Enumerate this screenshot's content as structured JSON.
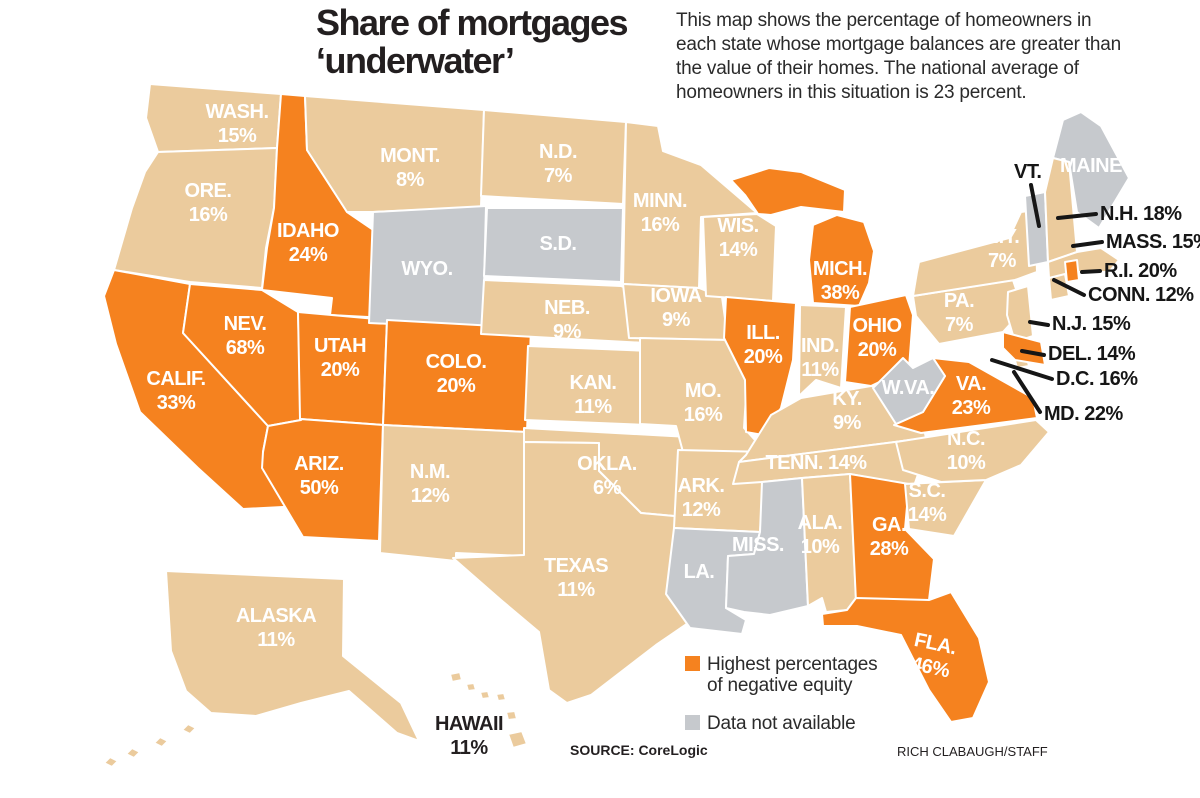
{
  "title": {
    "line1": "Share of mortgages",
    "line2": "‘underwater’"
  },
  "description": {
    "lines": [
      "This map shows the percentage of homeowners in",
      "each state whose mortgage balances are greater than",
      "the value of their homes. The national average of",
      "homeowners in this situation is 23 percent."
    ]
  },
  "colors": {
    "highlight": "#F5821F",
    "normal": "#EBCB9D",
    "nodata": "#C6C9CD",
    "border": "#FFFFFF",
    "state_label": "#FFFFFF",
    "dark_text": "#231F20"
  },
  "legend": {
    "items": [
      {
        "swatch": "highlight",
        "line1": "Highest percentages",
        "line2": "of negative equity"
      },
      {
        "swatch": "nodata",
        "line1": "Data not available",
        "line2": ""
      }
    ]
  },
  "source": "SOURCE: CoreLogic",
  "credit": "RICH CLABAUGH/STAFF",
  "chart_data": {
    "type": "choropleth-map",
    "region": "United States",
    "metric": "Percentage of homeowners whose mortgage balance exceeds home value",
    "national_average_pct": 23,
    "categories_legend": {
      "highlight": "Highest percentages of negative equity",
      "nodata": "Data not available"
    },
    "states": [
      {
        "id": "WA",
        "label": "WASH.",
        "value": "15%",
        "category": "normal"
      },
      {
        "id": "OR",
        "label": "ORE.",
        "value": "16%",
        "category": "normal"
      },
      {
        "id": "CA",
        "label": "CALIF.",
        "value": "33%",
        "category": "highlight"
      },
      {
        "id": "ID",
        "label": "IDAHO",
        "value": "24%",
        "category": "highlight"
      },
      {
        "id": "NV",
        "label": "NEV.",
        "value": "68%",
        "category": "highlight"
      },
      {
        "id": "UT",
        "label": "UTAH",
        "value": "20%",
        "category": "highlight"
      },
      {
        "id": "AZ",
        "label": "ARIZ.",
        "value": "50%",
        "category": "highlight"
      },
      {
        "id": "MT",
        "label": "MONT.",
        "value": "8%",
        "category": "normal"
      },
      {
        "id": "WY",
        "label": "WYO.",
        "value": null,
        "category": "nodata"
      },
      {
        "id": "CO",
        "label": "COLO.",
        "value": "20%",
        "category": "highlight"
      },
      {
        "id": "NM",
        "label": "N.M.",
        "value": "12%",
        "category": "normal"
      },
      {
        "id": "ND",
        "label": "N.D.",
        "value": "7%",
        "category": "normal"
      },
      {
        "id": "SD",
        "label": "S.D.",
        "value": null,
        "category": "nodata"
      },
      {
        "id": "NE",
        "label": "NEB.",
        "value": "9%",
        "category": "normal"
      },
      {
        "id": "KS",
        "label": "KAN.",
        "value": "11%",
        "category": "normal"
      },
      {
        "id": "OK",
        "label": "OKLA.",
        "value": "6%",
        "category": "normal"
      },
      {
        "id": "TX",
        "label": "TEXAS",
        "value": "11%",
        "category": "normal"
      },
      {
        "id": "MN",
        "label": "MINN.",
        "value": "16%",
        "category": "normal"
      },
      {
        "id": "IA",
        "label": "IOWA",
        "value": "9%",
        "category": "normal"
      },
      {
        "id": "MO",
        "label": "MO.",
        "value": "16%",
        "category": "normal"
      },
      {
        "id": "AR",
        "label": "ARK.",
        "value": "12%",
        "category": "normal"
      },
      {
        "id": "LA",
        "label": "LA.",
        "value": null,
        "category": "nodata"
      },
      {
        "id": "WI",
        "label": "WIS.",
        "value": "14%",
        "category": "normal"
      },
      {
        "id": "IL",
        "label": "ILL.",
        "value": "20%",
        "category": "highlight"
      },
      {
        "id": "MI",
        "label": "MICH.",
        "value": "38%",
        "category": "highlight"
      },
      {
        "id": "IN",
        "label": "IND.",
        "value": "11%",
        "category": "normal"
      },
      {
        "id": "OH",
        "label": "OHIO",
        "value": "20%",
        "category": "highlight"
      },
      {
        "id": "KY",
        "label": "KY.",
        "value": "9%",
        "category": "normal"
      },
      {
        "id": "TN",
        "label": "TENN.",
        "value": "14%",
        "category": "normal",
        "single_line": true
      },
      {
        "id": "MS",
        "label": "MISS.",
        "value": null,
        "category": "nodata"
      },
      {
        "id": "AL",
        "label": "ALA.",
        "value": "10%",
        "category": "normal"
      },
      {
        "id": "GA",
        "label": "GA.",
        "value": "28%",
        "category": "highlight"
      },
      {
        "id": "FL",
        "label": "FLA.",
        "value": "46%",
        "category": "highlight"
      },
      {
        "id": "SC",
        "label": "S.C.",
        "value": "14%",
        "category": "normal"
      },
      {
        "id": "NC",
        "label": "N.C.",
        "value": "10%",
        "category": "normal"
      },
      {
        "id": "VA",
        "label": "VA.",
        "value": "23%",
        "category": "highlight"
      },
      {
        "id": "WV",
        "label": "W.VA.",
        "value": null,
        "category": "nodata"
      },
      {
        "id": "PA",
        "label": "PA.",
        "value": "7%",
        "category": "normal"
      },
      {
        "id": "NY",
        "label": "N.Y.",
        "value": "7%",
        "category": "normal"
      },
      {
        "id": "VT",
        "label": "VT.",
        "value": null,
        "category": "nodata",
        "callout": true
      },
      {
        "id": "ME",
        "label": "MAINE",
        "value": null,
        "category": "nodata"
      },
      {
        "id": "NH",
        "label": "N.H.",
        "value": "18%",
        "category": "normal",
        "callout": true
      },
      {
        "id": "MA",
        "label": "MASS.",
        "value": "15%",
        "category": "normal",
        "callout": true
      },
      {
        "id": "RI",
        "label": "R.I.",
        "value": "20%",
        "category": "highlight",
        "callout": true
      },
      {
        "id": "CT",
        "label": "CONN.",
        "value": "12%",
        "category": "normal",
        "callout": true
      },
      {
        "id": "NJ",
        "label": "N.J.",
        "value": "15%",
        "category": "normal",
        "callout": true
      },
      {
        "id": "DE",
        "label": "DEL.",
        "value": "14%",
        "category": "normal",
        "callout": true
      },
      {
        "id": "DC",
        "label": "D.C.",
        "value": "16%",
        "category": "normal",
        "callout": true
      },
      {
        "id": "MD",
        "label": "MD.",
        "value": "22%",
        "category": "highlight",
        "callout": true
      },
      {
        "id": "AK",
        "label": "ALASKA",
        "value": "11%",
        "category": "normal"
      },
      {
        "id": "HI",
        "label": "HAWAII",
        "value": "11%",
        "category": "normal",
        "dark_label": true
      }
    ]
  }
}
